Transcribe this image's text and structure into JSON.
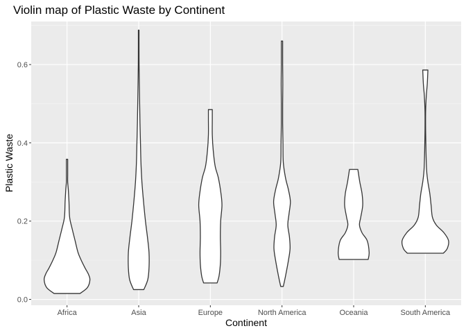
{
  "chart_data": {
    "type": "violin",
    "title": "Violin map of Plastic Waste by Continent",
    "xlabel": "Continent",
    "ylabel": "Plastic Waste",
    "ylim": [
      -0.015,
      0.71
    ],
    "yticks": [
      "0.0",
      "0.2",
      "0.4",
      "0.6"
    ],
    "ytick_values": [
      0.0,
      0.2,
      0.4,
      0.6
    ],
    "grid": true,
    "legend": "none",
    "categories": [
      "Africa",
      "Asia",
      "Europe",
      "North America",
      "Oceania",
      "South America"
    ],
    "violins": [
      {
        "category": "Africa",
        "min": 0.015,
        "max": 0.358,
        "profile": [
          [
            0.015,
            0.4
          ],
          [
            0.03,
            0.63
          ],
          [
            0.05,
            0.71
          ],
          [
            0.065,
            0.66
          ],
          [
            0.08,
            0.56
          ],
          [
            0.1,
            0.44
          ],
          [
            0.12,
            0.34
          ],
          [
            0.15,
            0.25
          ],
          [
            0.18,
            0.16
          ],
          [
            0.21,
            0.08
          ],
          [
            0.25,
            0.06
          ],
          [
            0.28,
            0.04
          ],
          [
            0.3,
            0.02
          ],
          [
            0.32,
            0.02
          ],
          [
            0.358,
            0.02
          ]
        ]
      },
      {
        "category": "Asia",
        "min": 0.025,
        "max": 0.688,
        "profile": [
          [
            0.025,
            0.16
          ],
          [
            0.05,
            0.28
          ],
          [
            0.08,
            0.32
          ],
          [
            0.12,
            0.32
          ],
          [
            0.16,
            0.27
          ],
          [
            0.2,
            0.21
          ],
          [
            0.25,
            0.15
          ],
          [
            0.3,
            0.1
          ],
          [
            0.35,
            0.07
          ],
          [
            0.4,
            0.055
          ],
          [
            0.45,
            0.04
          ],
          [
            0.5,
            0.03
          ],
          [
            0.55,
            0.02
          ],
          [
            0.6,
            0.012
          ],
          [
            0.65,
            0.01
          ],
          [
            0.688,
            0.01
          ]
        ]
      },
      {
        "category": "Europe",
        "min": 0.042,
        "max": 0.485,
        "profile": [
          [
            0.042,
            0.21
          ],
          [
            0.06,
            0.27
          ],
          [
            0.09,
            0.31
          ],
          [
            0.12,
            0.32
          ],
          [
            0.16,
            0.31
          ],
          [
            0.2,
            0.32
          ],
          [
            0.24,
            0.36
          ],
          [
            0.27,
            0.33
          ],
          [
            0.31,
            0.25
          ],
          [
            0.34,
            0.15
          ],
          [
            0.38,
            0.09
          ],
          [
            0.42,
            0.06
          ],
          [
            0.46,
            0.06
          ],
          [
            0.485,
            0.06
          ]
        ]
      },
      {
        "category": "North America",
        "min": 0.033,
        "max": 0.66,
        "profile": [
          [
            0.033,
            0.04
          ],
          [
            0.06,
            0.11
          ],
          [
            0.1,
            0.2
          ],
          [
            0.13,
            0.25
          ],
          [
            0.16,
            0.23
          ],
          [
            0.19,
            0.18
          ],
          [
            0.22,
            0.22
          ],
          [
            0.25,
            0.26
          ],
          [
            0.28,
            0.2
          ],
          [
            0.31,
            0.11
          ],
          [
            0.35,
            0.04
          ],
          [
            0.4,
            0.03
          ],
          [
            0.45,
            0.02
          ],
          [
            0.5,
            0.02
          ],
          [
            0.55,
            0.025
          ],
          [
            0.6,
            0.02
          ],
          [
            0.66,
            0.02
          ]
        ]
      },
      {
        "category": "Oceania",
        "min": 0.102,
        "max": 0.332,
        "profile": [
          [
            0.102,
            0.45
          ],
          [
            0.12,
            0.48
          ],
          [
            0.15,
            0.42
          ],
          [
            0.17,
            0.26
          ],
          [
            0.19,
            0.18
          ],
          [
            0.21,
            0.22
          ],
          [
            0.24,
            0.28
          ],
          [
            0.27,
            0.26
          ],
          [
            0.3,
            0.19
          ],
          [
            0.332,
            0.13
          ]
        ]
      },
      {
        "category": "South America",
        "min": 0.118,
        "max": 0.586,
        "profile": [
          [
            0.118,
            0.56
          ],
          [
            0.13,
            0.68
          ],
          [
            0.15,
            0.72
          ],
          [
            0.17,
            0.58
          ],
          [
            0.19,
            0.34
          ],
          [
            0.21,
            0.22
          ],
          [
            0.24,
            0.18
          ],
          [
            0.27,
            0.14
          ],
          [
            0.3,
            0.08
          ],
          [
            0.33,
            0.04
          ],
          [
            0.38,
            0.02
          ],
          [
            0.43,
            0.01
          ],
          [
            0.48,
            0.01
          ],
          [
            0.52,
            0.03
          ],
          [
            0.55,
            0.06
          ],
          [
            0.586,
            0.08
          ]
        ]
      }
    ]
  }
}
